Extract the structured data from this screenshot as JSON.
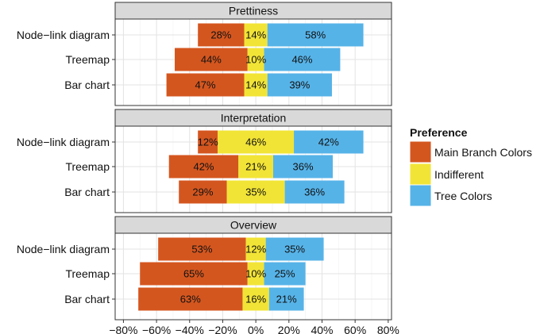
{
  "chart_data": {
    "type": "bar",
    "orientation": "horizontal-diverging",
    "categories": [
      "Node−link diagram",
      "Treemap",
      "Bar chart"
    ],
    "xlim": [
      -85,
      82
    ],
    "xticks": [
      -80,
      -60,
      -40,
      -20,
      0,
      20,
      40,
      60,
      80
    ],
    "xtick_labels": [
      "−80%",
      "−60%",
      "−40%",
      "−20%",
      "0%",
      "20%",
      "40%",
      "60%",
      "80%"
    ],
    "grid": true,
    "legend": {
      "title": "Preference",
      "placement": "right",
      "items": [
        {
          "name": "Main Branch Colors",
          "color": "#d4561f"
        },
        {
          "name": "Indifferent",
          "color": "#f2e436"
        },
        {
          "name": "Tree Colors",
          "color": "#56b3e8"
        }
      ]
    },
    "panels": [
      {
        "title": "Prettiness",
        "rows": [
          {
            "category": "Node−link diagram",
            "main": 28,
            "indifferent": 14,
            "tree": 58
          },
          {
            "category": "Treemap",
            "main": 44,
            "indifferent": 10,
            "tree": 46
          },
          {
            "category": "Bar chart",
            "main": 47,
            "indifferent": 14,
            "tree": 39
          }
        ]
      },
      {
        "title": "Interpretation",
        "rows": [
          {
            "category": "Node−link diagram",
            "main": 12,
            "indifferent": 46,
            "tree": 42
          },
          {
            "category": "Treemap",
            "main": 42,
            "indifferent": 21,
            "tree": 36
          },
          {
            "category": "Bar chart",
            "main": 29,
            "indifferent": 35,
            "tree": 36
          }
        ]
      },
      {
        "title": "Overview",
        "rows": [
          {
            "category": "Node−link diagram",
            "main": 53,
            "indifferent": 12,
            "tree": 35
          },
          {
            "category": "Treemap",
            "main": 65,
            "indifferent": 10,
            "tree": 25
          },
          {
            "category": "Bar chart",
            "main": 63,
            "indifferent": 16,
            "tree": 21
          }
        ]
      }
    ]
  }
}
